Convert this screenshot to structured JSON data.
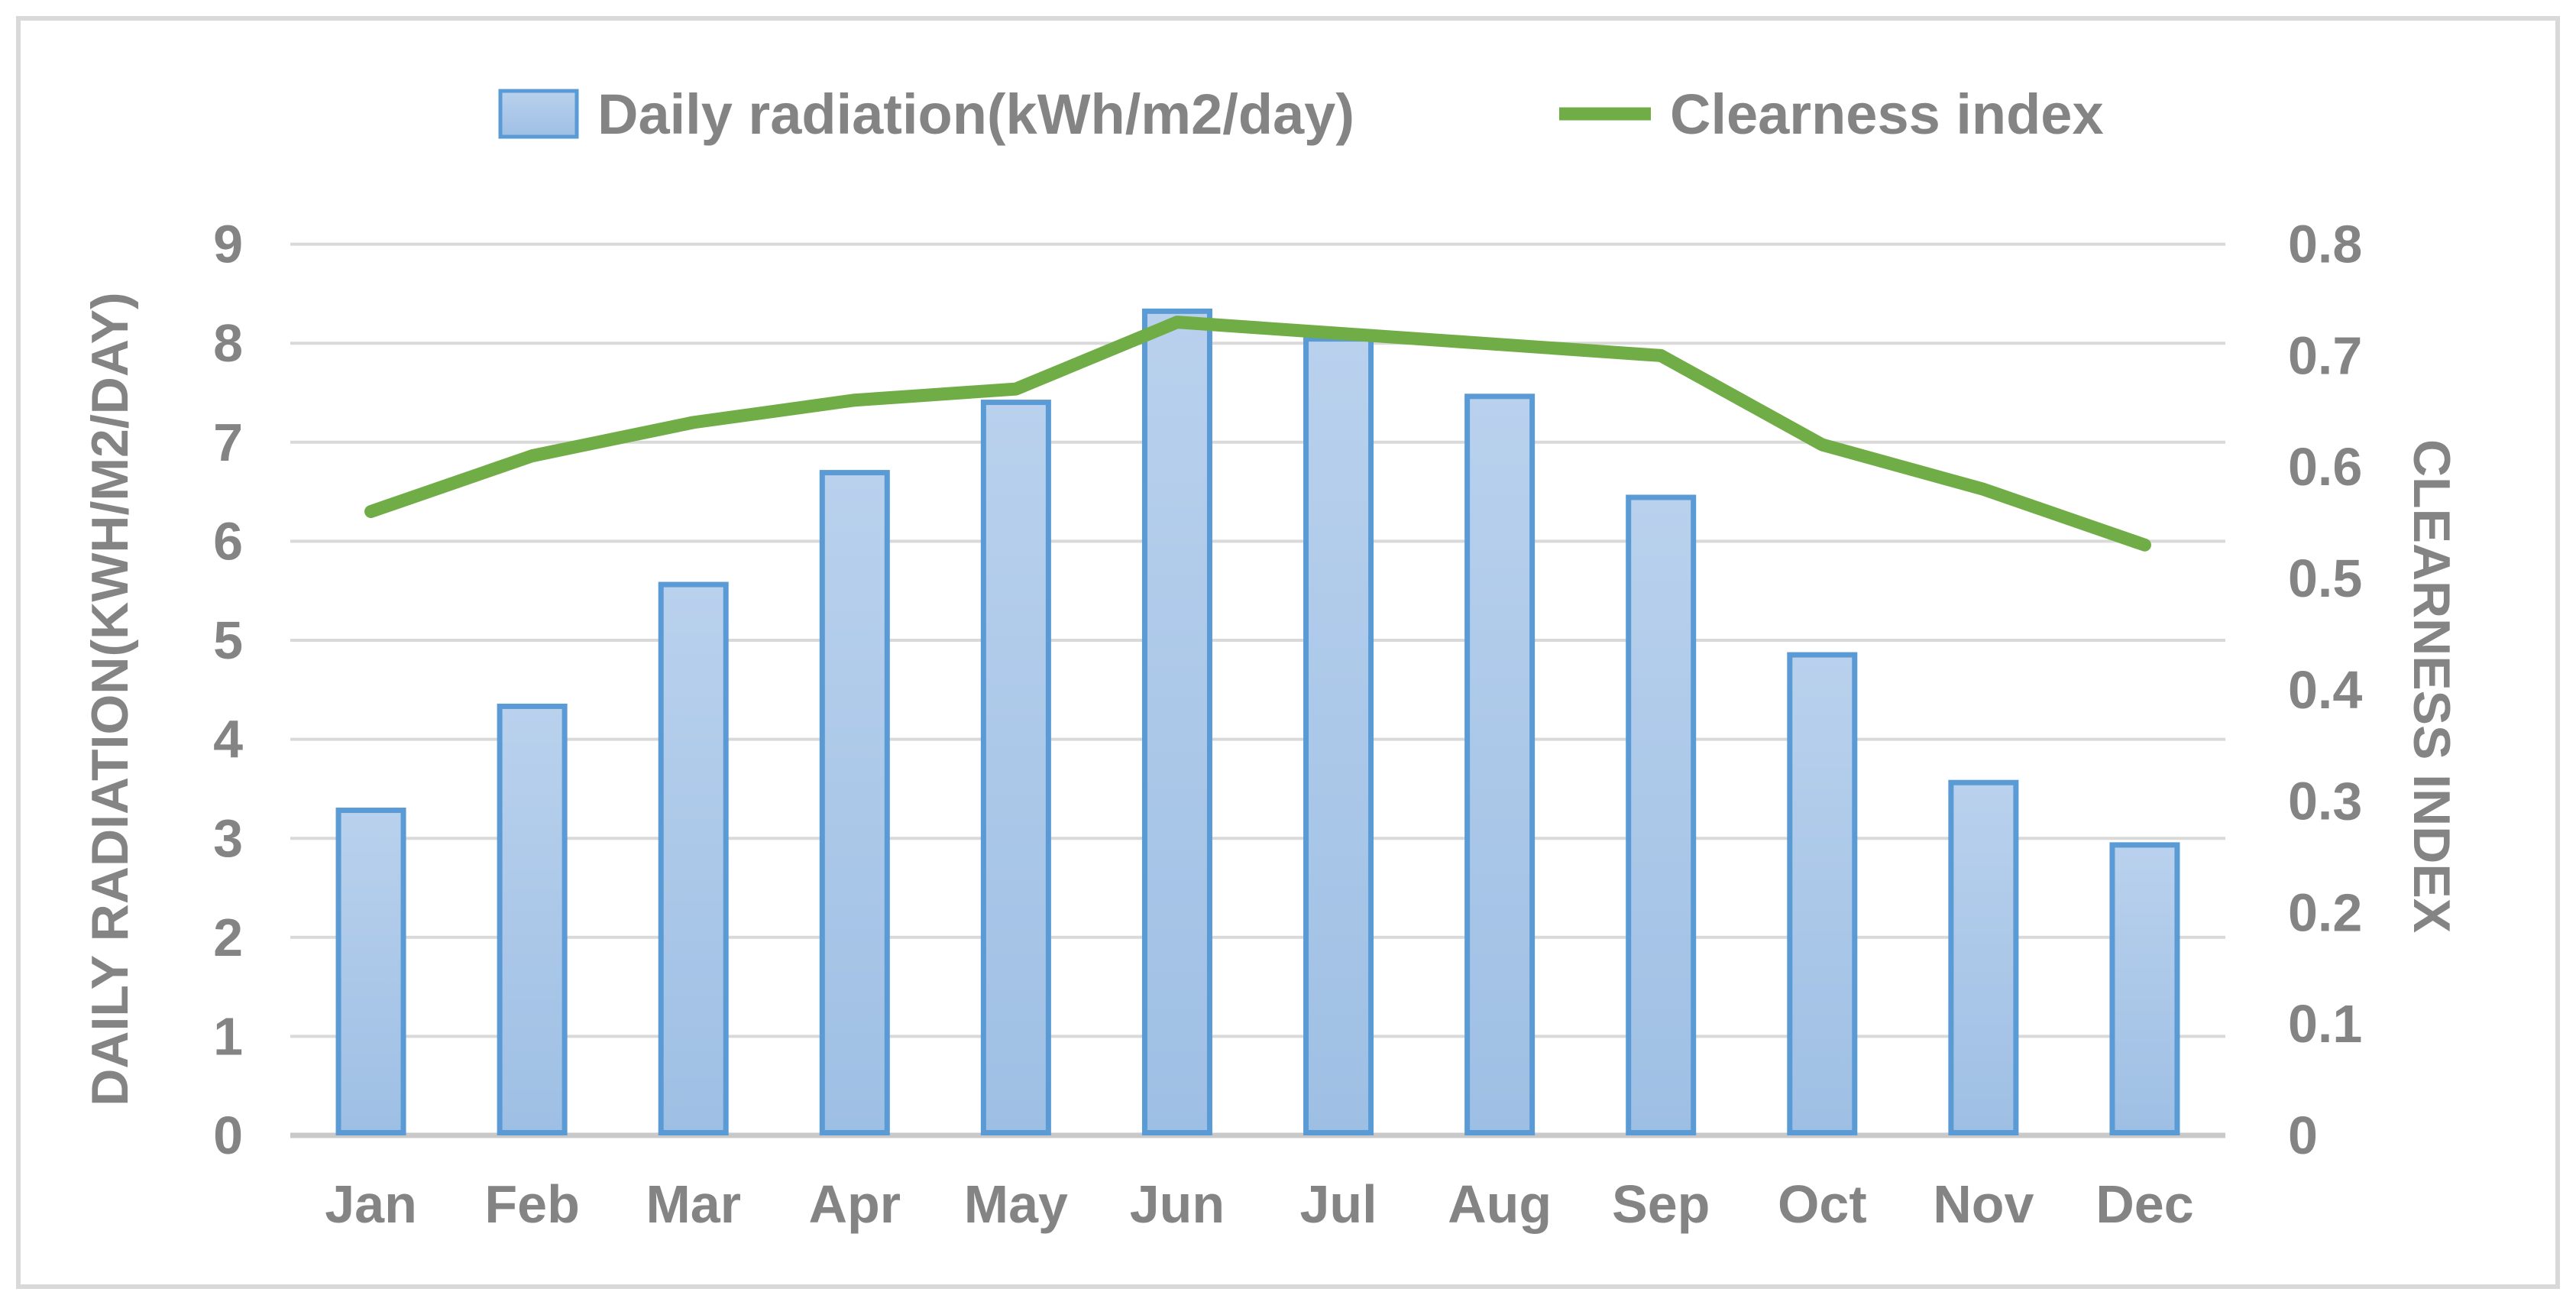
{
  "colors": {
    "bar_fill_top": "#B9D1ED",
    "bar_fill_bottom": "#9EBFE4",
    "bar_border": "#5B9BD5",
    "line": "#70AD47",
    "grid": "#D9D9D9",
    "axis_line": "#C9C9C9",
    "text": "#848484",
    "frame_border": "#D9D9D9",
    "background": "#FFFFFF"
  },
  "chart_data": {
    "type": "combo-bar-line",
    "categories": [
      "Jan",
      "Feb",
      "Mar",
      "Apr",
      "May",
      "Jun",
      "Jul",
      "Aug",
      "Sep",
      "Oct",
      "Nov",
      "Dec"
    ],
    "series": [
      {
        "name": "Daily radiation(kWh/m2/day)",
        "type": "bar",
        "axis": "left",
        "values": [
          3.31,
          4.36,
          5.59,
          6.72,
          7.43,
          8.35,
          8.07,
          7.49,
          6.47,
          4.88,
          3.59,
          2.96
        ]
      },
      {
        "name": "Clearness index",
        "type": "line",
        "axis": "right",
        "values": [
          0.56,
          0.61,
          0.64,
          0.66,
          0.67,
          0.73,
          0.72,
          0.71,
          0.7,
          0.62,
          0.58,
          0.53
        ]
      }
    ],
    "left_axis": {
      "title": "DAILY RADIATION(KWH/M2/DAY)",
      "min": 0,
      "max": 9,
      "step": 1,
      "ticks": [
        "0",
        "1",
        "2",
        "3",
        "4",
        "5",
        "6",
        "7",
        "8",
        "9"
      ]
    },
    "right_axis": {
      "title": "CLEARNESS INDEX",
      "min": 0,
      "max": 0.8,
      "step": 0.1,
      "ticks": [
        "0",
        "0.1",
        "0.2",
        "0.3",
        "0.4",
        "0.5",
        "0.6",
        "0.7",
        "0.8"
      ]
    },
    "grid": true,
    "legend_position": "top"
  }
}
